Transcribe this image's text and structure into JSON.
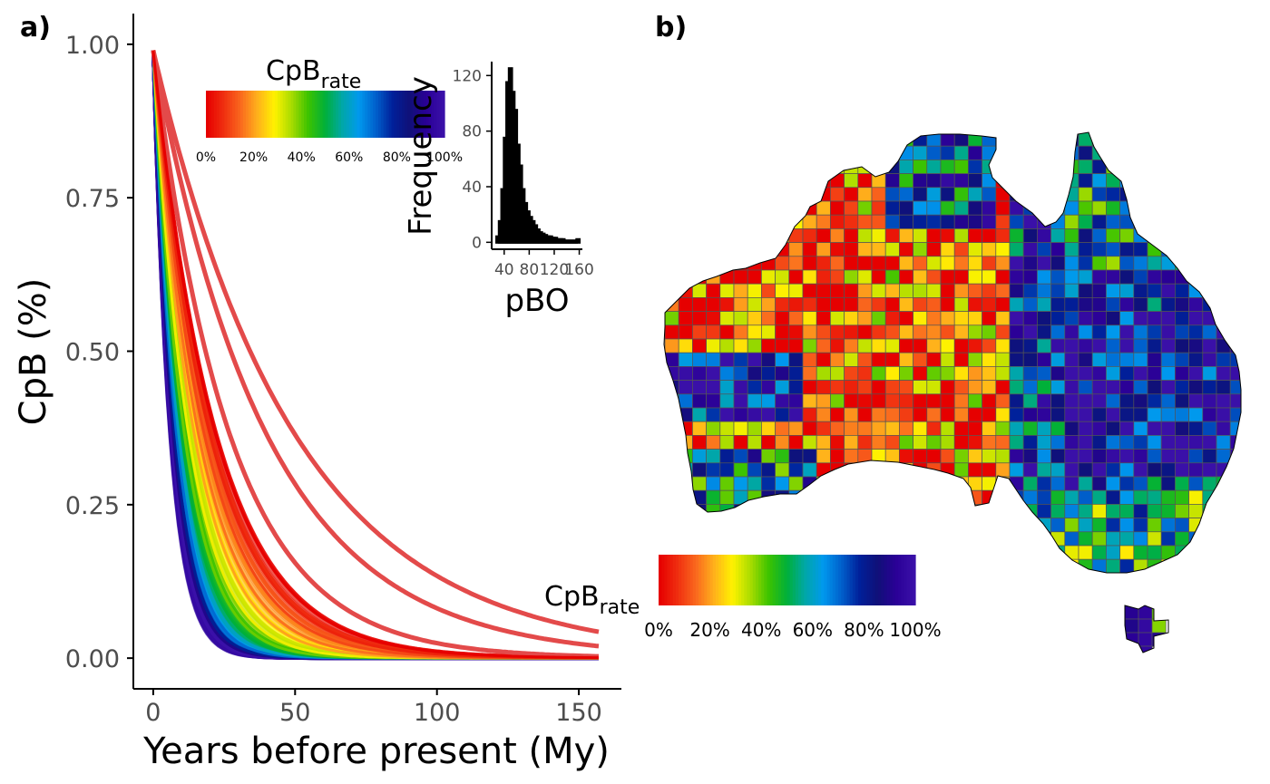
{
  "panels": {
    "a_label": "a)",
    "b_label": "b)"
  },
  "chart_data": [
    {
      "type": "line",
      "panel": "a)",
      "xlabel": "Years before present (My)",
      "ylabel": "CpB (%)",
      "xlim": [
        -7,
        165
      ],
      "ylim": [
        -0.05,
        1.05
      ],
      "x_ticks": [
        "0",
        "50",
        "100",
        "150"
      ],
      "y_ticks": [
        "0.00",
        "0.25",
        "0.50",
        "0.75",
        "1.00"
      ],
      "x_tick_values": [
        0,
        50,
        100,
        150
      ],
      "y_tick_values": [
        0,
        0.25,
        0.5,
        0.75,
        1.0
      ],
      "x_range_of_curves": [
        0,
        157
      ],
      "curve_model": "exponential decay y = y0 * exp(-x / tau)",
      "series": [
        {
          "color_pct": 0,
          "decay_tau": 22.0,
          "y0": 0.99
        },
        {
          "color_pct": 0,
          "decay_tau": 27.0,
          "y0": 0.99
        },
        {
          "color_pct": 0,
          "decay_tau": 40.0,
          "y0": 0.99
        },
        {
          "color_pct": 0,
          "decay_tau": 50.0,
          "y0": 0.99
        },
        {
          "color_pct": 5,
          "decay_tau": 20.0,
          "y0": 0.99
        },
        {
          "color_pct": 10,
          "decay_tau": 18.0,
          "y0": 0.99
        },
        {
          "color_pct": 15,
          "decay_tau": 16.0,
          "y0": 0.99
        },
        {
          "color_pct": 20,
          "decay_tau": 14.5,
          "y0": 0.99
        },
        {
          "color_pct": 30,
          "decay_tau": 12.5,
          "y0": 0.99
        },
        {
          "color_pct": 40,
          "decay_tau": 11.0,
          "y0": 0.99
        },
        {
          "color_pct": 50,
          "decay_tau": 10.0,
          "y0": 0.99
        },
        {
          "color_pct": 60,
          "decay_tau": 9.0,
          "y0": 0.99
        },
        {
          "color_pct": 70,
          "decay_tau": 8.2,
          "y0": 0.99
        },
        {
          "color_pct": 80,
          "decay_tau": 7.5,
          "y0": 0.99
        },
        {
          "color_pct": 90,
          "decay_tau": 7.0,
          "y0": 0.99
        },
        {
          "color_pct": 100,
          "decay_tau": 6.5,
          "y0": 0.99
        }
      ],
      "legend": {
        "title_main": "CpB",
        "title_sub": "rate",
        "placement": "top-center",
        "labels": [
          "0%",
          "20%",
          "40%",
          "60%",
          "80%",
          "100%"
        ]
      }
    },
    {
      "type": "bar",
      "panel": "inset",
      "xlabel": "pBO",
      "ylabel": "Frequency",
      "xlim": [
        20,
        165
      ],
      "ylim": [
        -5,
        130
      ],
      "x_ticks": [
        "40",
        "80",
        "120",
        "160"
      ],
      "y_ticks": [
        "0",
        "40",
        "80",
        "120"
      ],
      "x_tick_values": [
        40,
        80,
        120,
        160
      ],
      "y_tick_values": [
        0,
        40,
        80,
        120
      ],
      "bin_width": 4,
      "bin_starts": [
        28,
        32,
        36,
        40,
        44,
        48,
        52,
        56,
        60,
        64,
        68,
        72,
        76,
        80,
        84,
        88,
        92,
        96,
        100,
        104,
        108,
        112,
        116,
        120,
        124,
        128,
        132,
        136,
        140,
        144,
        148,
        152,
        156
      ],
      "values": [
        4,
        15,
        38,
        75,
        115,
        125,
        108,
        95,
        70,
        55,
        38,
        28,
        22,
        18,
        15,
        12,
        9,
        7,
        6,
        5,
        4,
        4,
        3,
        3,
        2,
        2,
        2,
        1,
        1,
        1,
        1,
        1,
        2
      ]
    },
    {
      "type": "heatmap",
      "panel": "b)",
      "description_free": true,
      "legend": {
        "title_main": "CpB",
        "title_sub": "rate",
        "placement": "bottom-left",
        "labels": [
          "0%",
          "20%",
          "40%",
          "60%",
          "80%",
          "100%"
        ]
      }
    }
  ],
  "colors": {
    "palette_stops": [
      "#e60000",
      "#f03010",
      "#fa6a1e",
      "#ffb21b",
      "#fff200",
      "#a8dc00",
      "#3cc300",
      "#00b039",
      "#00a7a7",
      "#0099ee",
      "#0060cc",
      "#00209a",
      "#101078",
      "#2a0096",
      "#3a10a8"
    ],
    "curve_outlier": "#e34a4a",
    "axis": "#000000",
    "tick_text": "#4d4d4d",
    "map_border": "#000000",
    "cell_border": "#555555"
  }
}
